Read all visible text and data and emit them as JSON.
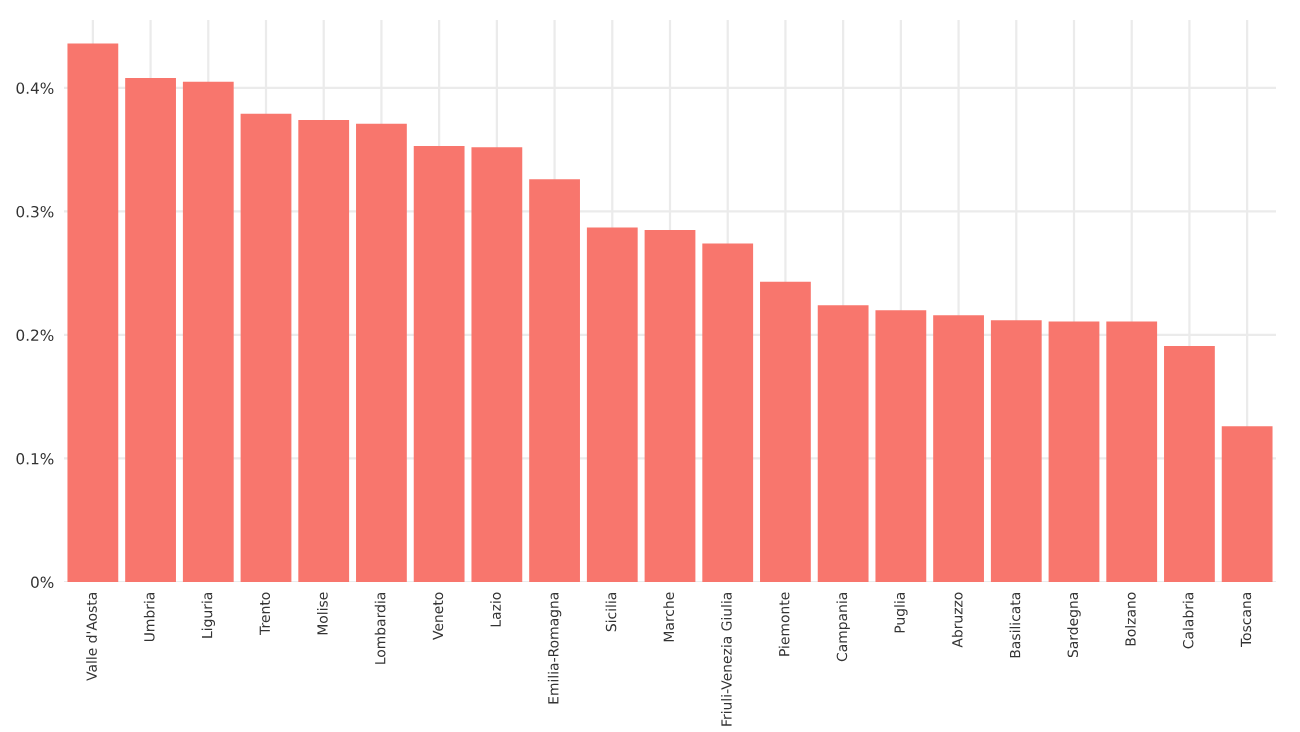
{
  "chart_data": {
    "type": "bar",
    "categories": [
      "Valle d'Aosta",
      "Umbria",
      "Liguria",
      "Trento",
      "Molise",
      "Lombardia",
      "Veneto",
      "Lazio",
      "Emilia-Romagna",
      "Sicilia",
      "Marche",
      "Friuli-Venezia Giulia",
      "Piemonte",
      "Campania",
      "Puglia",
      "Abruzzo",
      "Basilicata",
      "Sardegna",
      "Bolzano",
      "Calabria",
      "Toscana"
    ],
    "values": [
      0.436,
      0.408,
      0.405,
      0.379,
      0.374,
      0.371,
      0.353,
      0.352,
      0.326,
      0.287,
      0.285,
      0.274,
      0.243,
      0.224,
      0.22,
      0.216,
      0.212,
      0.211,
      0.211,
      0.191,
      0.126
    ],
    "color": "#f8766d",
    "ylim": [
      0,
      0.455
    ],
    "yticks": [
      {
        "value": 0,
        "label": "0%"
      },
      {
        "value": 0.1,
        "label": "0.1%"
      },
      {
        "value": 0.2,
        "label": "0.2%"
      },
      {
        "value": 0.3,
        "label": "0.3%"
      },
      {
        "value": 0.4,
        "label": "0.4%"
      }
    ],
    "grid": true
  }
}
